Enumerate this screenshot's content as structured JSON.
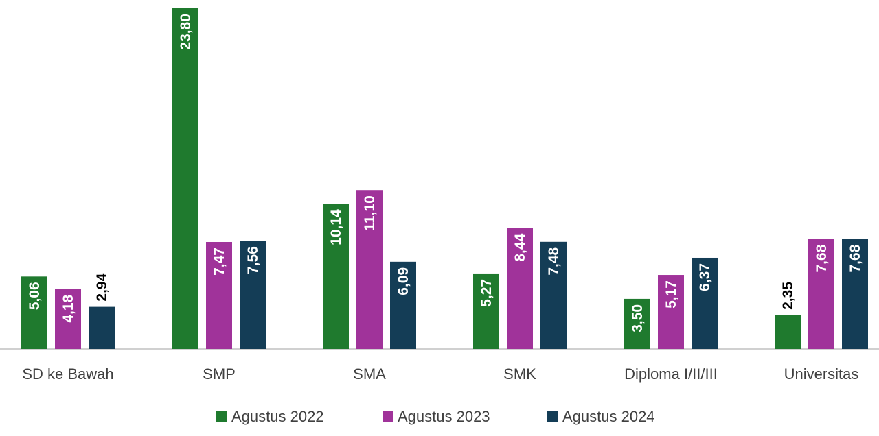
{
  "chart_data": {
    "type": "bar",
    "title": "",
    "xlabel": "",
    "ylabel": "",
    "ylim": [
      0,
      24
    ],
    "grid": false,
    "legend_position": "bottom",
    "categories": [
      "SD ke Bawah",
      "SMP",
      "SMA",
      "SMK",
      "Diploma  I/II/III",
      "Universitas"
    ],
    "series": [
      {
        "name": "Agustus 2022",
        "color": "#1f7a2e",
        "values": [
          5.06,
          23.8,
          10.14,
          5.27,
          3.5,
          2.35
        ],
        "labels": [
          "5,06",
          "23,80",
          "10,14",
          "5,27",
          "3,50",
          "2,35"
        ]
      },
      {
        "name": "Agustus 2023",
        "color": "#a0339a",
        "values": [
          4.18,
          7.47,
          11.1,
          8.44,
          5.17,
          7.68
        ],
        "labels": [
          "4,18",
          "7,47",
          "11,10",
          "8,44",
          "5,17",
          "7,68"
        ]
      },
      {
        "name": "Agustus 2024",
        "color": "#143d56",
        "values": [
          2.94,
          7.56,
          6.09,
          7.48,
          6.37,
          7.68
        ],
        "labels": [
          "2,94",
          "7,56",
          "6,09",
          "7,48",
          "6,37",
          "7,68"
        ]
      }
    ]
  }
}
